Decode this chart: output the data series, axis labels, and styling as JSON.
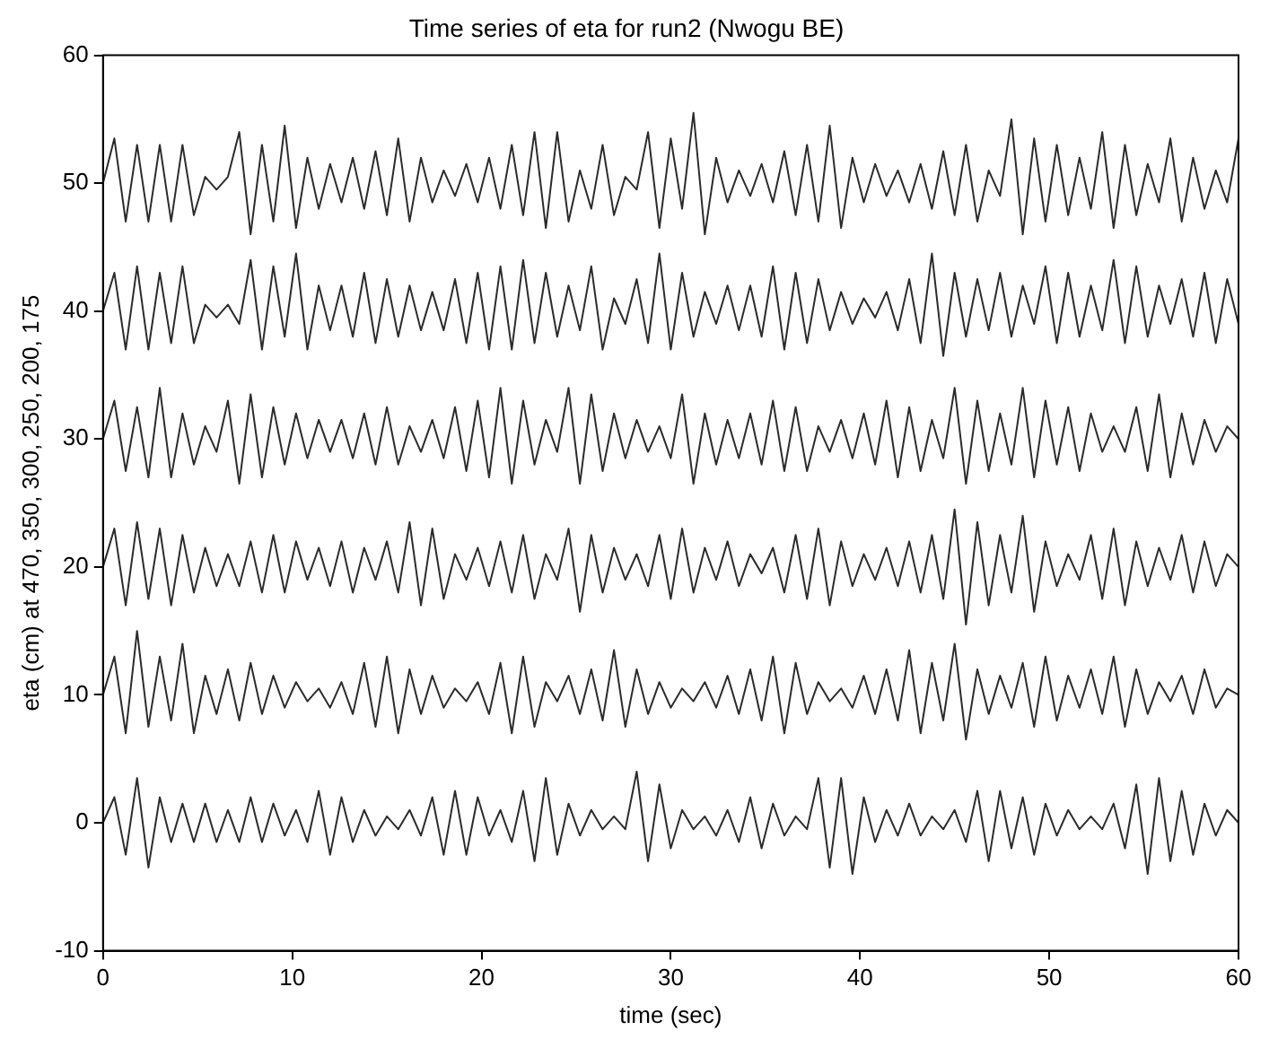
{
  "chart_data": {
    "type": "line",
    "title": "Time series of eta for run2 (Nwogu BE)",
    "xlabel": "time (sec)",
    "ylabel": "eta (cm) at 470, 350, 300, 250, 200, 175",
    "x": [
      0,
      0.6,
      1.2,
      1.8,
      2.4,
      3,
      3.6,
      4.2,
      4.8,
      5.4,
      6,
      6.6,
      7.2,
      7.8,
      8.4,
      9,
      9.6,
      10.2,
      10.8,
      11.4,
      12,
      12.6,
      13.2,
      13.8,
      14.4,
      15,
      15.6,
      16.2,
      16.8,
      17.4,
      18,
      18.6,
      19.2,
      19.8,
      20.4,
      21,
      21.6,
      22.2,
      22.8,
      23.4,
      24,
      24.6,
      25.2,
      25.8,
      26.4,
      27,
      27.6,
      28.2,
      28.8,
      29.4,
      30,
      30.6,
      31.2,
      31.8,
      32.4,
      33,
      33.6,
      34.2,
      34.8,
      35.4,
      36,
      36.6,
      37.2,
      37.8,
      38.4,
      39,
      39.6,
      40.2,
      40.8,
      41.4,
      42,
      42.6,
      43.2,
      43.8,
      44.4,
      45,
      45.6,
      46.2,
      46.8,
      47.4,
      48,
      48.6,
      49.2,
      49.8,
      50.4,
      51,
      51.6,
      52.2,
      52.8,
      53.4,
      54,
      54.6,
      55.2,
      55.8,
      56.4,
      57,
      57.6,
      58.2,
      58.8,
      59.4,
      60
    ],
    "series": [
      {
        "color": "#2b2b2b",
        "values": [
          50,
          53.5,
          47,
          53,
          47,
          53,
          47,
          53,
          47.5,
          50.5,
          49.5,
          50.5,
          54,
          46,
          53,
          47,
          54.5,
          46.5,
          52,
          48,
          51.5,
          48.5,
          52,
          48,
          52.5,
          47.5,
          53.5,
          47,
          52,
          48.5,
          51,
          49,
          51.5,
          48.5,
          52,
          48,
          53,
          47.5,
          54,
          46.5,
          54,
          47,
          51,
          48,
          53,
          47.5,
          50.5,
          49.5,
          54,
          46.5,
          53.5,
          48,
          55.5,
          46,
          52,
          48.5,
          51,
          49,
          51.5,
          48.5,
          52.5,
          47.5,
          53,
          47,
          54.5,
          46.5,
          52,
          48.5,
          51.5,
          49,
          51,
          48.5,
          51.5,
          48,
          52.5,
          47.5,
          53,
          47,
          51,
          49,
          55,
          46,
          53.5,
          47,
          53,
          47.5,
          52,
          48,
          54,
          46.5,
          53,
          47.5,
          51.5,
          48.5,
          53.5,
          47,
          52,
          48,
          51,
          48.5,
          53.5
        ]
      },
      {
        "color": "#2b2b2b",
        "values": [
          40,
          43,
          37,
          43.5,
          37,
          43,
          37.5,
          43.5,
          37.5,
          40.5,
          39.5,
          40.5,
          39,
          44,
          37,
          43.5,
          38,
          44.5,
          37,
          42,
          38.5,
          42,
          38,
          43,
          37.5,
          42.5,
          38,
          42,
          38.5,
          41.5,
          38.5,
          42.5,
          37.5,
          43,
          37,
          43.5,
          37,
          44,
          37.5,
          43,
          38,
          42,
          38.5,
          43.5,
          37,
          41,
          39,
          42.5,
          37.5,
          44.5,
          37,
          43,
          38,
          41.5,
          39,
          42,
          38.5,
          42,
          38,
          43.5,
          37,
          43,
          37.5,
          42.5,
          38.5,
          41.5,
          39,
          41,
          39.5,
          41.5,
          38.5,
          42.5,
          37.5,
          44.5,
          36.5,
          43,
          38,
          42.5,
          38.5,
          43,
          38,
          42,
          39,
          43.5,
          37.5,
          43,
          38,
          42,
          38.5,
          44,
          37.5,
          43.5,
          38,
          42,
          39,
          42.5,
          38,
          43,
          37.5,
          42.5,
          39
        ]
      },
      {
        "color": "#2b2b2b",
        "values": [
          30,
          33,
          27.5,
          32.5,
          27,
          34,
          27,
          32,
          28,
          31,
          29,
          33,
          26.5,
          33.5,
          27,
          32.5,
          28,
          32,
          28.5,
          31.5,
          29,
          31.5,
          28.5,
          32,
          28,
          32.5,
          28,
          31,
          29,
          31.5,
          28.5,
          32.5,
          27.5,
          33,
          27,
          34,
          26.5,
          33,
          28,
          31.5,
          29,
          34,
          26.5,
          33.5,
          27.5,
          32,
          28.5,
          31.5,
          29,
          31,
          28.5,
          33.5,
          26.5,
          32,
          28,
          31.5,
          28.5,
          32,
          28,
          33,
          27.5,
          32.5,
          27.5,
          31,
          29,
          31.5,
          28.5,
          32,
          28,
          33,
          27,
          32.5,
          27.5,
          31.5,
          28.5,
          34,
          26.5,
          33,
          27.5,
          32,
          28,
          34,
          27,
          33,
          28,
          32.5,
          27.5,
          32,
          29,
          31,
          29,
          32.5,
          27.5,
          33.5,
          27,
          32,
          28,
          31.5,
          29,
          31,
          30
        ]
      },
      {
        "color": "#2b2b2b",
        "values": [
          20,
          23,
          17,
          23.5,
          17.5,
          23,
          17,
          22.5,
          18,
          21.5,
          18.5,
          21,
          18.5,
          22,
          18,
          22.5,
          18,
          22,
          19,
          21.5,
          18.5,
          22,
          18,
          21.5,
          19,
          22,
          18,
          23.5,
          17,
          23,
          17.5,
          21,
          19,
          21.5,
          18.5,
          22,
          18,
          22.5,
          17.5,
          21,
          19,
          23,
          16.5,
          22.5,
          18,
          21.5,
          19,
          21,
          18.5,
          22.5,
          17.5,
          23,
          18,
          21.5,
          19,
          22,
          18.5,
          21,
          19.5,
          21.5,
          18,
          22.5,
          17.5,
          23,
          17,
          22,
          18.5,
          21,
          19,
          21.5,
          18.5,
          22,
          18,
          22.5,
          17.5,
          24.5,
          15.5,
          23.5,
          17,
          22.5,
          18,
          24,
          16.5,
          22,
          18.5,
          21,
          19,
          22.5,
          17.5,
          23,
          17,
          22,
          18.5,
          21.5,
          19,
          22.5,
          18,
          22,
          18.5,
          21,
          20
        ]
      },
      {
        "color": "#2b2b2b",
        "values": [
          10,
          13,
          7,
          15,
          7.5,
          13,
          8,
          14,
          7,
          11.5,
          8.5,
          12,
          8,
          12.5,
          8.5,
          11.5,
          9,
          11,
          9.5,
          10.5,
          9,
          11,
          8.5,
          12.5,
          7.5,
          13,
          7,
          12,
          8.5,
          11.5,
          9,
          10.5,
          9.5,
          11,
          8.5,
          12.5,
          7,
          13,
          7.5,
          11,
          9.5,
          11.5,
          8.5,
          12,
          8,
          13.5,
          7.5,
          12,
          8.5,
          11,
          9,
          10.5,
          9.5,
          11,
          9,
          11.5,
          8.5,
          12,
          8,
          13,
          7,
          12.5,
          8.5,
          11,
          9.5,
          10.5,
          9,
          11.5,
          8.5,
          12,
          8,
          13.5,
          7,
          12.5,
          8,
          14,
          6.5,
          12,
          8.5,
          11.5,
          9,
          12.5,
          7.5,
          13,
          8,
          11.5,
          9,
          12,
          8.5,
          13,
          7.5,
          12,
          8.5,
          11,
          9.5,
          11.5,
          8.5,
          12,
          9,
          10.5,
          10
        ]
      },
      {
        "color": "#2b2b2b",
        "values": [
          0,
          2,
          -2.5,
          3.5,
          -3.5,
          2,
          -1.5,
          1.5,
          -1.5,
          1.5,
          -1.5,
          1,
          -1.5,
          2,
          -1.5,
          1.5,
          -1,
          1,
          -1.5,
          2.5,
          -2.5,
          2,
          -1.5,
          1,
          -1,
          0.5,
          -0.5,
          1,
          -1,
          2,
          -2.5,
          2.5,
          -2.5,
          2,
          -1,
          1,
          -1.5,
          2.5,
          -3,
          3.5,
          -2.5,
          1.5,
          -1,
          1,
          -0.5,
          0.5,
          -0.5,
          4,
          -3,
          3,
          -2,
          1,
          -0.5,
          0.5,
          -1,
          1,
          -1.5,
          2,
          -2,
          1.5,
          -1,
          0.5,
          -0.5,
          3.5,
          -3.5,
          3.5,
          -4,
          2,
          -1.5,
          1,
          -1,
          1.5,
          -1,
          0.5,
          -0.5,
          1,
          -1.5,
          2.5,
          -3,
          2.5,
          -2,
          2,
          -2.5,
          1.5,
          -1,
          1,
          -0.5,
          0.5,
          -0.5,
          1.5,
          -2,
          3,
          -4,
          3.5,
          -3,
          2.5,
          -2.5,
          1.5,
          -1,
          1,
          0
        ]
      }
    ],
    "xlim": [
      0,
      60
    ],
    "xticks": [
      0,
      10,
      20,
      30,
      40,
      50,
      60
    ],
    "ylim": [
      -10,
      60
    ],
    "yticks": [
      -10,
      0,
      10,
      20,
      30,
      40,
      50,
      60
    ],
    "grid": false,
    "legend": false,
    "marker": "none",
    "line_style": "solid"
  }
}
